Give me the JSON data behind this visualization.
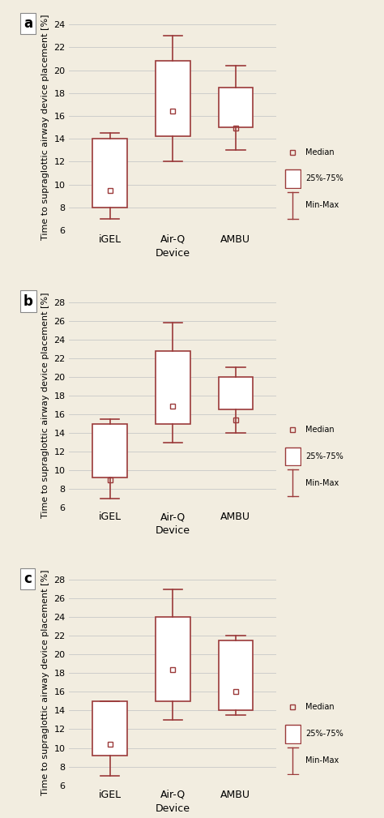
{
  "background_color": "#f2ede0",
  "box_color": "#9b3a3a",
  "box_facecolor": "#ffffff",
  "panels": [
    {
      "label": "a",
      "ylim": [
        6,
        24
      ],
      "yticks": [
        6,
        8,
        10,
        12,
        14,
        16,
        18,
        20,
        22,
        24
      ],
      "devices": [
        "iGEL",
        "Air-Q",
        "AMBU"
      ],
      "boxes": [
        {
          "q1": 8.0,
          "q3": 14.0,
          "median": 9.5,
          "whislo": 7.0,
          "whishi": 14.5
        },
        {
          "q1": 14.2,
          "q3": 20.8,
          "median": 16.4,
          "whislo": 12.0,
          "whishi": 23.0
        },
        {
          "q1": 15.0,
          "q3": 18.5,
          "median": 14.9,
          "whislo": 13.0,
          "whishi": 20.4
        }
      ]
    },
    {
      "label": "b",
      "ylim": [
        6,
        28
      ],
      "yticks": [
        6,
        8,
        10,
        12,
        14,
        16,
        18,
        20,
        22,
        24,
        26,
        28
      ],
      "devices": [
        "iGEL",
        "Air-Q",
        "AMBU"
      ],
      "boxes": [
        {
          "q1": 9.2,
          "q3": 15.0,
          "median": 9.0,
          "whislo": 7.0,
          "whishi": 15.5
        },
        {
          "q1": 15.0,
          "q3": 22.8,
          "median": 16.9,
          "whislo": 13.0,
          "whishi": 25.8
        },
        {
          "q1": 16.5,
          "q3": 20.0,
          "median": 15.4,
          "whislo": 14.0,
          "whishi": 21.0
        }
      ]
    },
    {
      "label": "c",
      "ylim": [
        6,
        28
      ],
      "yticks": [
        6,
        8,
        10,
        12,
        14,
        16,
        18,
        20,
        22,
        24,
        26,
        28
      ],
      "devices": [
        "iGEL",
        "Air-Q",
        "AMBU"
      ],
      "boxes": [
        {
          "q1": 9.2,
          "q3": 15.0,
          "median": 10.4,
          "whislo": 7.0,
          "whishi": 15.0
        },
        {
          "q1": 15.0,
          "q3": 24.0,
          "median": 18.4,
          "whislo": 13.0,
          "whishi": 27.0
        },
        {
          "q1": 14.0,
          "q3": 21.5,
          "median": 16.0,
          "whislo": 13.5,
          "whishi": 22.0
        }
      ]
    }
  ],
  "ylabel": "Time to supraglottic airway device placement [%]",
  "xlabel": "Device",
  "legend_items": [
    "Median",
    "25%-75%",
    "Min-Max"
  ],
  "box_width": 0.55
}
